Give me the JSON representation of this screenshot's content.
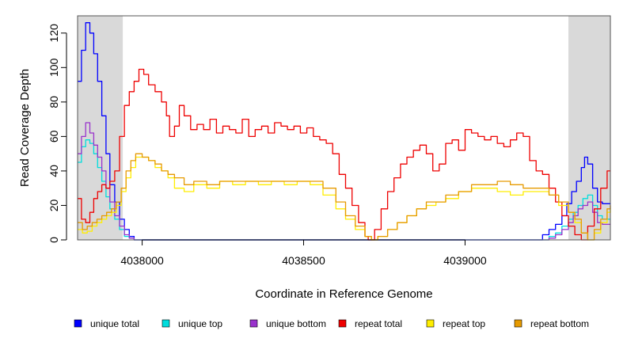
{
  "chart_data": {
    "type": "line",
    "title": "",
    "xlabel": "Coordinate in Reference Genome",
    "ylabel": "Read Coverage Depth",
    "xlim": [
      4037800,
      4039450
    ],
    "ylim": [
      0,
      130
    ],
    "x_ticks": [
      4038000,
      4038500,
      4039000
    ],
    "x_tick_labels": [
      "4038000",
      "4038500",
      "4039000"
    ],
    "y_ticks": [
      0,
      20,
      40,
      60,
      80,
      100,
      120
    ],
    "y_tick_labels": [
      "0",
      "20",
      "40",
      "60",
      "80",
      "100",
      "120"
    ],
    "grid": false,
    "shaded_regions": [
      {
        "x": [
          4037800,
          4037940
        ]
      },
      {
        "x": [
          4039320,
          4039450
        ]
      }
    ],
    "series": [
      {
        "name": "unique total",
        "color": "#0000ff",
        "x": [
          4037800,
          4037812,
          4037825,
          4037838,
          4037850,
          4037862,
          4037875,
          4037888,
          4037900,
          4037915,
          4037930,
          4037945,
          4037960,
          4037975,
          4038000,
          4039000,
          4039220,
          4039240,
          4039260,
          4039280,
          4039300,
          4039315,
          4039330,
          4039345,
          4039360,
          4039370,
          4039380,
          4039395,
          4039410,
          4039425,
          4039450
        ],
        "y": [
          92,
          110,
          126,
          120,
          108,
          92,
          72,
          50,
          32,
          22,
          12,
          6,
          2,
          0,
          0,
          0,
          0,
          3,
          6,
          9,
          14,
          21,
          28,
          34,
          42,
          48,
          44,
          30,
          22,
          21,
          21
        ]
      },
      {
        "name": "unique top",
        "color": "#00dddd",
        "x": [
          4037800,
          4037812,
          4037825,
          4037838,
          4037850,
          4037862,
          4037875,
          4037888,
          4037900,
          4037915,
          4037930,
          4037945,
          4037960,
          4037975,
          4038000,
          4039000,
          4039240,
          4039260,
          4039280,
          4039300,
          4039320,
          4039335,
          4039350,
          4039365,
          4039380,
          4039395,
          4039410,
          4039425,
          4039450
        ],
        "y": [
          45,
          54,
          58,
          56,
          50,
          42,
          34,
          25,
          18,
          12,
          6,
          2,
          1,
          0,
          0,
          0,
          0,
          2,
          4,
          8,
          12,
          16,
          20,
          24,
          26,
          20,
          14,
          12,
          12
        ]
      },
      {
        "name": "unique bottom",
        "color": "#9932cc",
        "x": [
          4037800,
          4037812,
          4037825,
          4037838,
          4037850,
          4037862,
          4037875,
          4037888,
          4037900,
          4037915,
          4037930,
          4037945,
          4037960,
          4037975,
          4038000,
          4039000,
          4039240,
          4039260,
          4039280,
          4039300,
          4039320,
          4039335,
          4039350,
          4039365,
          4039380,
          4039395,
          4039410,
          4039425,
          4039450
        ],
        "y": [
          50,
          60,
          68,
          62,
          55,
          48,
          40,
          30,
          22,
          14,
          8,
          3,
          1,
          0,
          0,
          0,
          0,
          1,
          3,
          6,
          10,
          14,
          18,
          20,
          22,
          16,
          10,
          9,
          9
        ]
      },
      {
        "name": "repeat total",
        "color": "#ee0000",
        "x": [
          4037800,
          4037812,
          4037825,
          4037838,
          4037850,
          4037862,
          4037875,
          4037888,
          4037900,
          4037915,
          4037930,
          4037945,
          4037960,
          4037975,
          4037990,
          4038005,
          4038020,
          4038040,
          4038060,
          4038075,
          4038085,
          4038100,
          4038115,
          4038130,
          4038150,
          4038170,
          4038190,
          4038210,
          4038230,
          4038250,
          4038270,
          4038290,
          4038310,
          4038330,
          4038350,
          4038370,
          4038390,
          4038410,
          4038430,
          4038450,
          4038470,
          4038490,
          4038510,
          4038530,
          4038550,
          4038570,
          4038590,
          4038610,
          4038630,
          4038650,
          4038670,
          4038690,
          4038700,
          4038720,
          4038740,
          4038760,
          4038780,
          4038800,
          4038820,
          4038840,
          4038860,
          4038880,
          4038900,
          4038920,
          4038940,
          4038960,
          4038980,
          4039000,
          4039020,
          4039040,
          4039060,
          4039080,
          4039100,
          4039120,
          4039140,
          4039160,
          4039180,
          4039200,
          4039220,
          4039240,
          4039260,
          4039280,
          4039300,
          4039320,
          4039340,
          4039360,
          4039380,
          4039400,
          4039420,
          4039440,
          4039450
        ],
        "y": [
          24,
          12,
          10,
          16,
          24,
          28,
          32,
          30,
          34,
          40,
          60,
          78,
          86,
          92,
          99,
          96,
          90,
          86,
          80,
          72,
          60,
          66,
          78,
          72,
          64,
          67,
          64,
          70,
          62,
          66,
          64,
          62,
          70,
          60,
          64,
          66,
          62,
          68,
          66,
          64,
          66,
          62,
          65,
          60,
          58,
          56,
          50,
          38,
          30,
          20,
          10,
          2,
          0,
          6,
          18,
          28,
          36,
          44,
          48,
          52,
          55,
          50,
          40,
          44,
          56,
          58,
          52,
          64,
          62,
          60,
          58,
          60,
          56,
          54,
          58,
          62,
          60,
          46,
          40,
          38,
          30,
          22,
          14,
          8,
          3,
          0,
          8,
          18,
          30,
          40,
          40
        ]
      },
      {
        "name": "repeat top",
        "color": "#ffee00",
        "x": [
          4037800,
          4037815,
          4037830,
          4037845,
          4037860,
          4037875,
          4037890,
          4037905,
          4037920,
          4037935,
          4037950,
          4037965,
          4037980,
          4038000,
          4038020,
          4038040,
          4038060,
          4038080,
          4038100,
          4038130,
          4038160,
          4038200,
          4038240,
          4038280,
          4038320,
          4038360,
          4038400,
          4038440,
          4038480,
          4038520,
          4038560,
          4038600,
          4038630,
          4038660,
          4038690,
          4038710,
          4038730,
          4038760,
          4038790,
          4038820,
          4038850,
          4038880,
          4038910,
          4038940,
          4038980,
          4039020,
          4039060,
          4039100,
          4039140,
          4039180,
          4039220,
          4039260,
          4039290,
          4039320,
          4039340,
          4039360,
          4039380,
          4039400,
          4039420,
          4039440,
          4039450
        ],
        "y": [
          6,
          4,
          5,
          8,
          10,
          12,
          14,
          16,
          20,
          28,
          36,
          42,
          48,
          48,
          46,
          42,
          40,
          36,
          30,
          28,
          32,
          30,
          34,
          32,
          34,
          32,
          34,
          32,
          34,
          32,
          26,
          18,
          12,
          6,
          2,
          0,
          2,
          6,
          10,
          14,
          18,
          20,
          22,
          24,
          28,
          30,
          30,
          28,
          26,
          28,
          28,
          26,
          20,
          16,
          10,
          4,
          0,
          4,
          10,
          16,
          18
        ]
      },
      {
        "name": "repeat bottom",
        "color": "#e69a00",
        "x": [
          4037800,
          4037815,
          4037830,
          4037845,
          4037860,
          4037875,
          4037890,
          4037905,
          4037920,
          4037935,
          4037950,
          4037965,
          4037980,
          4038000,
          4038020,
          4038040,
          4038060,
          4038080,
          4038100,
          4038130,
          4038160,
          4038200,
          4038240,
          4038280,
          4038320,
          4038360,
          4038400,
          4038440,
          4038480,
          4038520,
          4038560,
          4038600,
          4038630,
          4038660,
          4038690,
          4038710,
          4038730,
          4038760,
          4038790,
          4038820,
          4038850,
          4038880,
          4038910,
          4038940,
          4038980,
          4039020,
          4039060,
          4039100,
          4039140,
          4039180,
          4039220,
          4039260,
          4039290,
          4039320,
          4039340,
          4039360,
          4039380,
          4039400,
          4039420,
          4039440,
          4039450
        ],
        "y": [
          10,
          6,
          8,
          10,
          12,
          14,
          16,
          18,
          22,
          30,
          40,
          46,
          50,
          48,
          46,
          44,
          40,
          38,
          36,
          32,
          34,
          32,
          34,
          34,
          34,
          34,
          34,
          34,
          34,
          34,
          30,
          22,
          14,
          8,
          2,
          0,
          2,
          6,
          10,
          14,
          18,
          22,
          22,
          26,
          28,
          32,
          32,
          34,
          32,
          30,
          30,
          26,
          22,
          16,
          12,
          4,
          0,
          6,
          12,
          18,
          20
        ]
      }
    ]
  }
}
